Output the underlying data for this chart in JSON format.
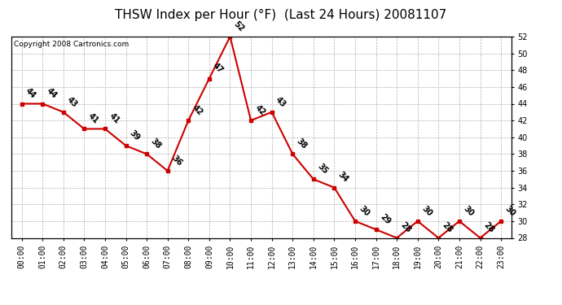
{
  "title": "THSW Index per Hour (°F)  (Last 24 Hours) 20081107",
  "copyright": "Copyright 2008 Cartronics.com",
  "hours": [
    "00:00",
    "01:00",
    "02:00",
    "03:00",
    "04:00",
    "05:00",
    "06:00",
    "07:00",
    "08:00",
    "09:00",
    "10:00",
    "11:00",
    "12:00",
    "13:00",
    "14:00",
    "15:00",
    "16:00",
    "17:00",
    "18:00",
    "19:00",
    "20:00",
    "21:00",
    "22:00",
    "23:00"
  ],
  "values": [
    44,
    44,
    43,
    41,
    41,
    39,
    38,
    36,
    42,
    47,
    52,
    42,
    43,
    38,
    35,
    34,
    30,
    29,
    28,
    30,
    28,
    30,
    28,
    30
  ],
  "ylim": [
    28.0,
    52.0
  ],
  "yticks": [
    28.0,
    30.0,
    32.0,
    34.0,
    36.0,
    38.0,
    40.0,
    42.0,
    44.0,
    46.0,
    48.0,
    50.0,
    52.0
  ],
  "line_color": "#cc0000",
  "marker_color": "#cc0000",
  "bg_color": "#ffffff",
  "grid_color": "#b0b0b0",
  "title_fontsize": 11,
  "label_fontsize": 7,
  "annotation_fontsize": 7,
  "copyright_fontsize": 6.5
}
